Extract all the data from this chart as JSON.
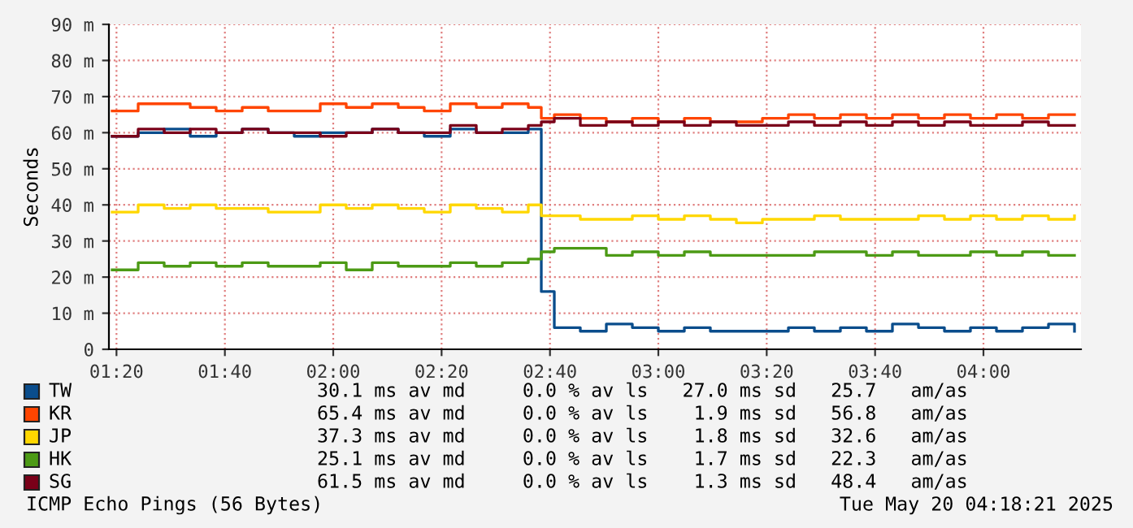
{
  "chart_data": {
    "type": "step",
    "title": "ICMP Echo Pings (56 Bytes)",
    "ylabel": "Seconds",
    "x": [
      1.32,
      1.4,
      1.48,
      1.56,
      1.64,
      1.72,
      1.8,
      1.88,
      1.96,
      2.04,
      2.12,
      2.2,
      2.28,
      2.36,
      2.44,
      2.52,
      2.6,
      2.64,
      2.68,
      2.76,
      2.84,
      2.92,
      3.0,
      3.08,
      3.16,
      3.24,
      3.32,
      3.4,
      3.48,
      3.56,
      3.64,
      3.72,
      3.8,
      3.88,
      3.96,
      4.04,
      4.12,
      4.2,
      4.28
    ],
    "series": [
      {
        "name": "TW",
        "color": "#0a4d8c",
        "values": [
          59,
          60,
          61,
          59,
          60,
          61,
          60,
          59,
          60,
          60,
          61,
          60,
          59,
          61,
          60,
          60,
          61,
          16,
          6,
          5,
          7,
          6,
          5,
          6,
          5,
          5,
          5,
          6,
          5,
          6,
          5,
          7,
          6,
          5,
          6,
          5,
          6,
          7,
          5
        ]
      },
      {
        "name": "KR",
        "color": "#ff4500",
        "values": [
          66,
          68,
          68,
          67,
          66,
          67,
          66,
          66,
          68,
          67,
          68,
          67,
          66,
          68,
          67,
          68,
          67,
          64,
          65,
          64,
          63,
          64,
          63,
          64,
          63,
          63,
          64,
          65,
          64,
          65,
          64,
          65,
          64,
          65,
          64,
          65,
          64,
          65,
          65
        ]
      },
      {
        "name": "JP",
        "color": "#ffd700",
        "values": [
          38,
          40,
          39,
          40,
          39,
          39,
          38,
          38,
          40,
          39,
          40,
          39,
          38,
          40,
          39,
          38,
          40,
          37,
          37,
          36,
          36,
          37,
          36,
          37,
          36,
          35,
          36,
          36,
          37,
          36,
          36,
          36,
          37,
          36,
          37,
          36,
          37,
          36,
          37
        ]
      },
      {
        "name": "HK",
        "color": "#4c9a15",
        "values": [
          22,
          24,
          23,
          24,
          23,
          24,
          23,
          23,
          24,
          22,
          24,
          23,
          23,
          24,
          23,
          24,
          25,
          27,
          28,
          28,
          26,
          27,
          26,
          27,
          26,
          26,
          26,
          26,
          27,
          27,
          26,
          27,
          26,
          26,
          27,
          26,
          27,
          26,
          26
        ]
      },
      {
        "name": "SG",
        "color": "#7a0019",
        "values": [
          59,
          61,
          60,
          61,
          60,
          61,
          60,
          60,
          59,
          60,
          61,
          60,
          60,
          62,
          60,
          61,
          62,
          63,
          64,
          62,
          63,
          62,
          63,
          62,
          63,
          62,
          62,
          63,
          62,
          63,
          62,
          63,
          62,
          63,
          62,
          62,
          63,
          62,
          62
        ]
      }
    ],
    "annotations": [
      "30.1 ms av md     0.0 % av ls   27.0 ms sd   25.7   am/as",
      "65.4 ms av md     0.0 % av ls    1.9 ms sd   56.8   am/as",
      "37.3 ms av md     0.0 % av ls    1.8 ms sd   32.6   am/as",
      "25.1 ms av md     0.0 % av ls    1.7 ms sd   22.3   am/as",
      "61.5 ms av md     0.0 % av ls    1.3 ms sd   48.4   am/as",
      "Tue May 20 04:18:21 2025"
    ],
    "xlim": [
      1.31,
      4.3
    ],
    "xticks": [
      {
        "value": 1.3333,
        "label": "01:20"
      },
      {
        "value": 1.6667,
        "label": "01:40"
      },
      {
        "value": 2.0,
        "label": "02:00"
      },
      {
        "value": 2.3333,
        "label": "02:20"
      },
      {
        "value": 2.6667,
        "label": "02:40"
      },
      {
        "value": 3.0,
        "label": "03:00"
      },
      {
        "value": 3.3333,
        "label": "03:20"
      },
      {
        "value": 3.6667,
        "label": "03:40"
      },
      {
        "value": 4.0,
        "label": "04:00"
      }
    ],
    "ylim": [
      0,
      90
    ],
    "yticks": [
      {
        "value": 0,
        "label": "0"
      },
      {
        "value": 10,
        "label": "10 m"
      },
      {
        "value": 20,
        "label": "20 m"
      },
      {
        "value": 30,
        "label": "30 m"
      },
      {
        "value": 40,
        "label": "40 m"
      },
      {
        "value": 50,
        "label": "50 m"
      },
      {
        "value": 60,
        "label": "60 m"
      },
      {
        "value": 70,
        "label": "70 m"
      },
      {
        "value": 80,
        "label": "80 m"
      },
      {
        "value": 90,
        "label": "90 m"
      }
    ],
    "grid": true,
    "legend": "bottom",
    "line_style": "solid",
    "marker": "none"
  }
}
